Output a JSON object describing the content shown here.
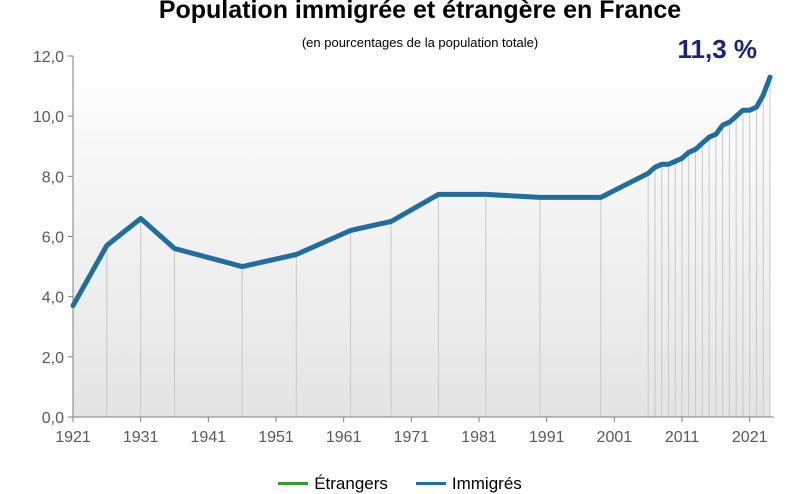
{
  "chart_data": {
    "type": "line",
    "title": "Population immigrée et étrangère en France",
    "subtitle": "(en pourcentages de la population totale)",
    "annotation": "11,3 %",
    "ylim": [
      0,
      12
    ],
    "yticks": [
      "0,0",
      "2,0",
      "4,0",
      "6,0",
      "8,0",
      "10,0",
      "12,0"
    ],
    "xticks": [
      "1921",
      "1931",
      "1941",
      "1951",
      "1961",
      "1971",
      "1981",
      "1991",
      "2001",
      "2011",
      "2021"
    ],
    "xlim": [
      1921,
      2024
    ],
    "legend_position": "bottom",
    "colors": {
      "etrangers": "#2e9e2e",
      "immigres": "#1f6e9e",
      "annotation": "#1a237e"
    },
    "series": [
      {
        "name": "Étrangers",
        "x": [],
        "y": []
      },
      {
        "name": "Immigrés",
        "x": [
          1921,
          1926,
          1931,
          1936,
          1946,
          1954,
          1962,
          1968,
          1975,
          1982,
          1990,
          1999,
          2006,
          2007,
          2008,
          2009,
          2010,
          2011,
          2012,
          2013,
          2014,
          2015,
          2016,
          2017,
          2018,
          2019,
          2020,
          2021,
          2022,
          2023,
          2024
        ],
        "y": [
          3.7,
          5.7,
          6.6,
          5.6,
          5.0,
          5.4,
          6.2,
          6.5,
          7.4,
          7.4,
          7.3,
          7.3,
          8.1,
          8.3,
          8.4,
          8.4,
          8.5,
          8.6,
          8.8,
          8.9,
          9.1,
          9.3,
          9.4,
          9.7,
          9.8,
          10.0,
          10.2,
          10.2,
          10.3,
          10.7,
          11.3
        ]
      }
    ]
  }
}
